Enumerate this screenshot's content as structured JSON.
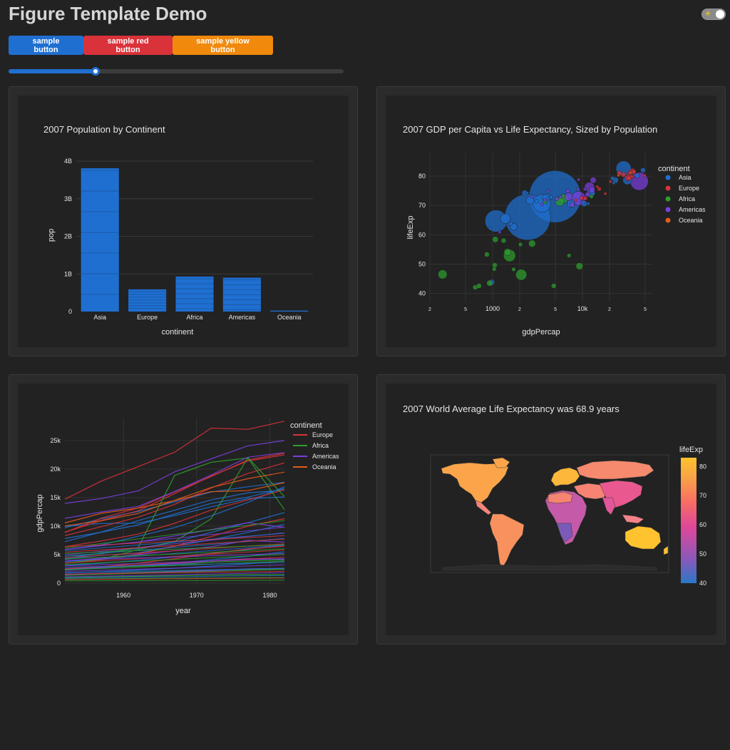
{
  "header": {
    "title": "Figure Template Demo",
    "theme_toggle_icon": "sun-moon-icon"
  },
  "buttons": {
    "sample": "sample button",
    "red": "sample red button",
    "yellow": "sample yellow button"
  },
  "slider": {
    "value": 0.26
  },
  "colors": {
    "blue": "#1f6fd1",
    "red": "#d9323a",
    "yellow": "#f0890c",
    "asia": "#1f6fd1",
    "europe": "#d9323a",
    "africa": "#2ca02c",
    "americas": "#7b3fe0",
    "oceania": "#e45a1b",
    "plot_bg": "#222222",
    "card_bg": "#2b2b2b"
  },
  "chart_data": [
    {
      "type": "bar",
      "title": "2007 Population by Continent",
      "xlabel": "continent",
      "ylabel": "pop",
      "categories": [
        "Asia",
        "Europe",
        "Africa",
        "Americas",
        "Oceania"
      ],
      "values": [
        3.81,
        0.59,
        0.93,
        0.9,
        0.025
      ],
      "value_unit": "billions",
      "yticks": [
        "0",
        "1B",
        "2B",
        "3B",
        "4B"
      ],
      "ylim": [
        0,
        4
      ],
      "grid": true
    },
    {
      "type": "scatter",
      "title": "2007 GDP per Capita vs Life Expectancy, Sized by Population",
      "xlabel": "gdpPercap",
      "ylabel": "lifeExp",
      "x_scale": "log",
      "xlim": [
        200,
        60000
      ],
      "ylim": [
        37,
        88
      ],
      "xticks": [
        "2",
        "5",
        "1000",
        "2",
        "5",
        "10k",
        "2",
        "5"
      ],
      "yticks": [
        "40",
        "50",
        "60",
        "70",
        "80"
      ],
      "legend": {
        "title": "continent",
        "placement": "top-right",
        "entries": [
          "Asia",
          "Europe",
          "Africa",
          "Americas",
          "Oceania"
        ]
      },
      "series": [
        {
          "name": "Asia",
          "points": [
            [
              2452,
              66.0,
              4.6
            ],
            [
              4959,
              73.0,
              5.2
            ],
            [
              3541,
              70.7,
              1.8
            ],
            [
              1091,
              64.7,
              2.2
            ],
            [
              28718,
              82.6,
              1.5
            ],
            [
              1391,
              65.5,
              1.0
            ],
            [
              31656,
              78.6,
              0.9
            ],
            [
              12451,
              74.2,
              0.8
            ],
            [
              7458,
              70.6,
              0.8
            ],
            [
              2605,
              71.7,
              0.8
            ],
            [
              974,
              43.8,
              0.6
            ],
            [
              3970,
              72.5,
              0.8
            ],
            [
              1713,
              62.7,
              0.7
            ],
            [
              23348,
              78.6,
              0.6
            ],
            [
              10461,
              70.6,
              0.6
            ],
            [
              12779,
              74.2,
              0.6
            ],
            [
              2280,
              74.2,
              0.6
            ],
            [
              40675,
              80.2,
              0.5
            ],
            [
              47306,
              82.0,
              0.5
            ],
            [
              1593,
              63.8,
              0.4
            ],
            [
              21655,
              79.2,
              0.4
            ],
            [
              3095,
              71.4,
              0.4
            ],
            [
              4471,
              72.8,
              0.4
            ],
            [
              944,
              62.1,
              0.3
            ],
            [
              22316,
              77.6,
              0.3
            ],
            [
              4185,
              72.4,
              0.3
            ],
            [
              11606,
              70.6,
              0.3
            ],
            [
              2441,
              74.2,
              0.3
            ]
          ]
        },
        {
          "name": "Europe",
          "points": [
            [
              32170,
              79.4,
              0.6
            ],
            [
              33692,
              80.7,
              0.6
            ],
            [
              36126,
              81.6,
              0.6
            ],
            [
              33203,
              79.4,
              0.5
            ],
            [
              28569,
              80.5,
              0.5
            ],
            [
              25768,
              80.9,
              0.5
            ],
            [
              15390,
              75.6,
              0.4
            ],
            [
              9786,
              72.5,
              0.4
            ],
            [
              10809,
              72.4,
              0.4
            ],
            [
              37506,
              81.5,
              0.4
            ],
            [
              20510,
              78.1,
              0.3
            ],
            [
              36319,
              79.8,
              0.3
            ],
            [
              33860,
              80.9,
              0.3
            ],
            [
              35278,
              79.8,
              0.3
            ],
            [
              18009,
              74.0,
              0.3
            ],
            [
              8458,
              71.8,
              0.3
            ],
            [
              49357,
              80.2,
              0.3
            ],
            [
              14619,
              76.4,
              0.3
            ]
          ]
        },
        {
          "name": "Africa",
          "points": [
            [
              1543,
              52.9,
              1.2
            ],
            [
              6223,
              72.3,
              0.9
            ],
            [
              5581,
              71.3,
              0.9
            ],
            [
              2083,
              46.4,
              1.1
            ],
            [
              9270,
              49.3,
              0.7
            ],
            [
              641,
              42.1,
              0.5
            ],
            [
              1327,
              58.0,
              0.5
            ],
            [
              2749,
              57.0,
              0.7
            ],
            [
              1463,
              54.1,
              0.7
            ],
            [
              277,
              46.5,
              0.9
            ],
            [
              926,
              43.5,
              0.6
            ],
            [
              1071,
              58.4,
              0.6
            ],
            [
              4797,
              42.6,
              0.5
            ],
            [
              1056,
              49.6,
              0.5
            ],
            [
              863,
              53.3,
              0.5
            ],
            [
              706,
              42.6,
              0.5
            ],
            [
              1042,
              48.3,
              0.4
            ],
            [
              1712,
              48.2,
              0.4
            ],
            [
              12570,
              73.0,
              0.4
            ],
            [
              7092,
              52.9,
              0.4
            ],
            [
              3820,
              71.2,
              0.4
            ],
            [
              2042,
              56.7,
              0.4
            ]
          ]
        },
        {
          "name": "Americas",
          "points": [
            [
              42952,
              78.2,
              1.8
            ],
            [
              9066,
              72.4,
              1.4
            ],
            [
              11977,
              76.2,
              1.0
            ],
            [
              7007,
              72.9,
              0.8
            ],
            [
              36319,
              80.6,
              0.7
            ],
            [
              12779,
              75.3,
              0.6
            ],
            [
              13172,
              78.6,
              0.6
            ],
            [
              11416,
              73.7,
              0.5
            ],
            [
              7670,
              70.2,
              0.5
            ],
            [
              6873,
              74.9,
              0.4
            ],
            [
              5186,
              72.2,
              0.4
            ],
            [
              9065,
              78.8,
              0.3
            ],
            [
              10611,
              75.5,
              0.3
            ],
            [
              1202,
              60.9,
              0.3
            ],
            [
              3548,
              70.3,
              0.3
            ],
            [
              5728,
              72.9,
              0.3
            ],
            [
              8948,
              75.5,
              0.3
            ],
            [
              2749,
              72.9,
              0.3
            ],
            [
              3822,
              71.9,
              0.3
            ],
            [
              4172,
              74.9,
              0.3
            ]
          ]
        },
        {
          "name": "Oceania",
          "points": [
            [
              34435,
              81.2,
              0.3
            ],
            [
              25185,
              80.2,
              0.2
            ]
          ]
        }
      ]
    },
    {
      "type": "line",
      "xlabel": "year",
      "ylabel": "gdpPercap",
      "xlim": [
        1952,
        1982
      ],
      "ylim": [
        0,
        29000
      ],
      "xticks": [
        "1960",
        "1970",
        "1980"
      ],
      "yticks": [
        "0",
        "5k",
        "10k",
        "15k",
        "20k",
        "25k"
      ],
      "x": [
        1952,
        1957,
        1962,
        1967,
        1972,
        1977,
        1982
      ],
      "legend": {
        "title": "continent",
        "placement": "top-right",
        "entries": [
          "Europe",
          "Africa",
          "Americas",
          "Oceania"
        ]
      },
      "series": [
        {
          "name": "Asia",
          "values": [
            [
              9980,
              10470,
              10520,
              11850,
              13400,
              14820,
              15120
            ],
            [
              7270,
              8970,
              10960,
              12800,
              14600,
              15820,
              16330
            ],
            [
              7830,
              8950,
              10200,
              12130,
              14000,
              15090,
              16600
            ],
            [
              9730,
              11290,
              12560,
              14250,
              15980,
              16910,
              17690
            ],
            [
              4360,
              5290,
              6100,
              7200,
              8920,
              10610,
              12390
            ],
            [
              5900,
              6740,
              8220,
              9740,
              11800,
              14160,
              16900
            ],
            [
              4200,
              4900,
              5300,
              6500,
              7600,
              8900,
              10300
            ],
            [
              3100,
              3500,
              4000,
              4600,
              5200,
              5900,
              6700
            ],
            [
              2300,
              2700,
              3100,
              3500,
              4100,
              4700,
              5500
            ],
            [
              1800,
              2000,
              2300,
              2600,
              3000,
              3400,
              3900
            ]
          ]
        },
        {
          "name": "Europe",
          "values": [
            [
              14730,
              17910,
              20430,
              22970,
              27190,
              26970,
              28400
            ],
            [
              8940,
              10990,
              12700,
              15700,
              18800,
              21420,
              22500
            ],
            [
              8340,
              9910,
              11580,
              13820,
              16700,
              19240,
              21100
            ],
            [
              8900,
              11400,
              13200,
              16000,
              18700,
              21600,
              22800
            ],
            [
              6400,
              7400,
              8600,
              10500,
              12800,
              14600,
              16400
            ],
            [
              3500,
              4100,
              5100,
              6500,
              8200,
              10000,
              11300
            ],
            [
              2400,
              2900,
              3500,
              4300,
              5200,
              6000,
              6500
            ]
          ]
        },
        {
          "name": "Africa",
          "values": [
            [
              4720,
              5170,
              6220,
              18900,
              21200,
              21950,
              12900
            ],
            [
              3520,
              4200,
              5900,
              7300,
              11300,
              22010,
              15200
            ],
            [
              2420,
              2800,
              3000,
              3200,
              3700,
              3900,
              4100
            ],
            [
              1500,
              1700,
              1900,
              2100,
              2300,
              2400,
              2500
            ],
            [
              1000,
              1100,
              1200,
              1300,
              1400,
              1500,
              1500
            ],
            [
              700,
              750,
              800,
              850,
              900,
              950,
              950
            ]
          ]
        },
        {
          "name": "Americas",
          "values": [
            [
              13990,
              14850,
              16170,
              19530,
              21810,
              24070,
              25010
            ],
            [
              11370,
              12490,
              13460,
              16080,
              18970,
              22090,
              22900
            ],
            [
              5900,
              6600,
              7200,
              8300,
              9400,
              10600,
              9800
            ],
            [
              3800,
              4400,
              5000,
              5700,
              6400,
              7500,
              7200
            ],
            [
              2500,
              2800,
              3100,
              3400,
              3900,
              4300,
              4200
            ],
            [
              1500,
              1700,
              1800,
              2000,
              2200,
              2500,
              2600
            ]
          ]
        },
        {
          "name": "Oceania",
          "values": [
            [
              10040,
              10950,
              12220,
              14530,
              16790,
              18330,
              19480
            ],
            [
              10560,
              12250,
              13180,
              14470,
              16050,
              16230,
              17630
            ]
          ]
        }
      ]
    },
    {
      "type": "map",
      "title": "2007 World Average Life Expectancy was 68.9 years",
      "colorbar": {
        "title": "lifeExp",
        "ticks": [
          "40",
          "50",
          "60",
          "70",
          "80"
        ],
        "range": [
          40,
          83
        ]
      },
      "colorscale": [
        "#2a78c8",
        "#8d57b8",
        "#e0479a",
        "#f86e63",
        "#f9a545",
        "#fec32e"
      ]
    }
  ]
}
